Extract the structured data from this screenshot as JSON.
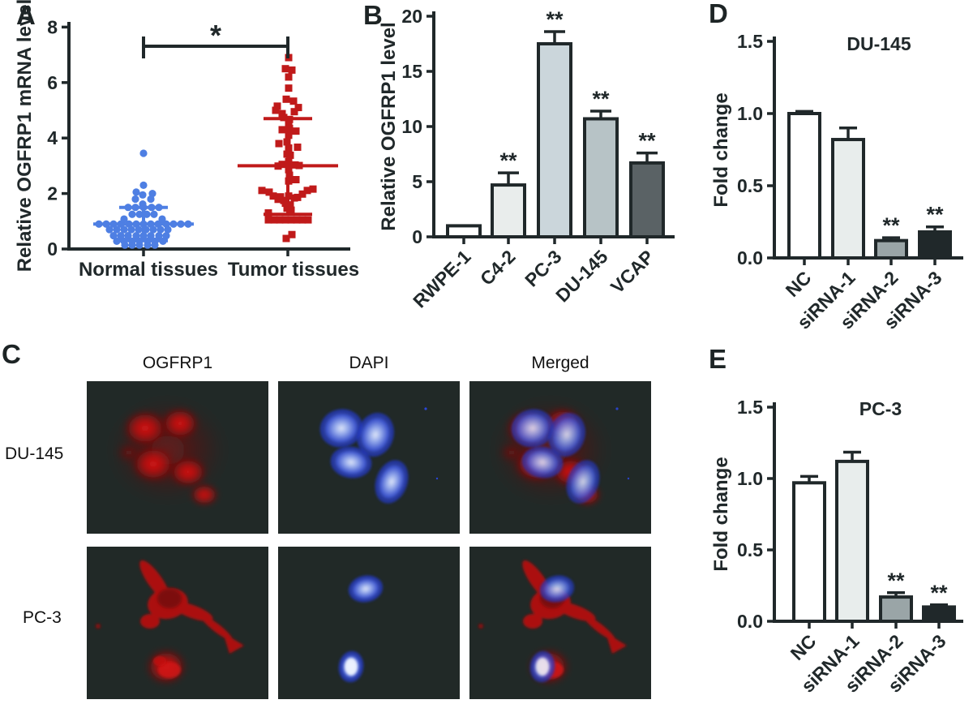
{
  "panels": {
    "A": {
      "label": "A"
    },
    "B": {
      "label": "B"
    },
    "C": {
      "label": "C",
      "column_headers": [
        "OGFRP1",
        "DAPI",
        "Merged"
      ],
      "row_labels": [
        "DU-145",
        "PC-3"
      ],
      "stains": {
        "OGFRP1": "red fluorescence",
        "DAPI": "blue nuclear stain",
        "Merged": "overlay"
      },
      "stain_colors": {
        "OGFRP1": "#c01414",
        "DAPI": "#3b55dd"
      }
    },
    "D": {
      "label": "D"
    },
    "E": {
      "label": "E"
    }
  },
  "colors": {
    "ink": "#20282A",
    "normal_points": "#4E7FE3",
    "tumor_points": "#C01A1A",
    "micrograph_bg": "#212927"
  },
  "chart_data": [
    {
      "panel": "A",
      "type": "scatter",
      "title": "",
      "xlabel": "",
      "ylabel": "Relative OGFRP1 mRNA level",
      "ylim": [
        0,
        8
      ],
      "yticks": [
        0,
        2,
        4,
        6,
        8
      ],
      "categories": [
        "Normal tissues",
        "Tumor tissues"
      ],
      "significance": {
        "label": "*",
        "from": "Normal tissues",
        "to": "Tumor tissues"
      },
      "series": [
        {
          "name": "Normal tissues",
          "marker": "circle",
          "color": "#4E7FE3",
          "mean": 0.9,
          "error_low": 0.3,
          "error_high": 1.5,
          "points": [
            [
              3.45,
              0
            ],
            [
              2.3,
              0
            ],
            [
              2.05,
              -9
            ],
            [
              2.0,
              11
            ],
            [
              1.95,
              -1
            ],
            [
              1.8,
              -10
            ],
            [
              1.8,
              9
            ],
            [
              1.62,
              -1
            ],
            [
              1.5,
              -19
            ],
            [
              1.5,
              -10
            ],
            [
              1.5,
              0
            ],
            [
              1.5,
              10
            ],
            [
              1.5,
              19
            ],
            [
              1.25,
              -14
            ],
            [
              1.25,
              -5
            ],
            [
              1.25,
              4
            ],
            [
              1.25,
              13
            ],
            [
              1.08,
              -24
            ],
            [
              1.08,
              23
            ],
            [
              0.9,
              -55
            ],
            [
              0.9,
              -46
            ],
            [
              0.9,
              -37
            ],
            [
              0.9,
              -28
            ],
            [
              0.9,
              -18
            ],
            [
              0.9,
              -9
            ],
            [
              0.9,
              0
            ],
            [
              0.9,
              9
            ],
            [
              0.9,
              18
            ],
            [
              0.9,
              28
            ],
            [
              0.9,
              37
            ],
            [
              0.9,
              46
            ],
            [
              0.9,
              55
            ],
            [
              0.7,
              -42
            ],
            [
              0.7,
              -33
            ],
            [
              0.7,
              -24
            ],
            [
              0.7,
              -15
            ],
            [
              0.7,
              -6
            ],
            [
              0.7,
              3
            ],
            [
              0.7,
              12
            ],
            [
              0.7,
              21
            ],
            [
              0.7,
              30
            ],
            [
              0.48,
              -37
            ],
            [
              0.48,
              -28
            ],
            [
              0.48,
              -19
            ],
            [
              0.48,
              -9
            ],
            [
              0.48,
              0
            ],
            [
              0.48,
              9
            ],
            [
              0.48,
              19
            ],
            [
              0.48,
              28
            ],
            [
              0.28,
              -33
            ],
            [
              0.28,
              -24
            ],
            [
              0.28,
              -14
            ],
            [
              0.28,
              -5
            ],
            [
              0.28,
              5
            ],
            [
              0.28,
              14
            ],
            [
              0.28,
              24
            ],
            [
              0.14,
              -23
            ],
            [
              0.14,
              -14
            ],
            [
              0.14,
              -5
            ],
            [
              0.14,
              5
            ],
            [
              0.14,
              14
            ]
          ]
        },
        {
          "name": "Tumor tissues",
          "marker": "square",
          "color": "#C01A1A",
          "mean": 3.0,
          "error_low": 1.25,
          "error_high": 4.7,
          "points": [
            [
              6.9,
              1
            ],
            [
              6.5,
              -3
            ],
            [
              6.45,
              5
            ],
            [
              6.2,
              1
            ],
            [
              5.8,
              1
            ],
            [
              5.4,
              -2
            ],
            [
              5.33,
              7
            ],
            [
              5.15,
              -13
            ],
            [
              5.1,
              13
            ],
            [
              5.0,
              -15
            ],
            [
              4.95,
              8
            ],
            [
              4.88,
              -7
            ],
            [
              4.74,
              -5
            ],
            [
              4.67,
              2
            ],
            [
              4.55,
              1
            ],
            [
              4.35,
              2
            ],
            [
              4.3,
              -7
            ],
            [
              4.25,
              10
            ],
            [
              4.1,
              1
            ],
            [
              3.86,
              -1
            ],
            [
              3.8,
              -11
            ],
            [
              3.67,
              12
            ],
            [
              3.64,
              1
            ],
            [
              3.42,
              -1
            ],
            [
              3.38,
              3
            ],
            [
              3.15,
              1
            ],
            [
              3.05,
              -7
            ],
            [
              3.03,
              9
            ],
            [
              3.01,
              14
            ],
            [
              2.99,
              -12
            ],
            [
              2.86,
              1
            ],
            [
              2.66,
              2
            ],
            [
              2.5,
              10
            ],
            [
              2.45,
              1
            ],
            [
              2.11,
              -32
            ],
            [
              2.05,
              -23
            ],
            [
              1.98,
              18
            ],
            [
              1.91,
              -18
            ],
            [
              1.88,
              -9
            ],
            [
              1.86,
              12
            ],
            [
              1.84,
              8
            ],
            [
              1.79,
              -12
            ],
            [
              1.75,
              -5
            ],
            [
              1.91,
              1
            ],
            [
              2.11,
              24
            ],
            [
              2.16,
              31
            ],
            [
              1.65,
              -3
            ],
            [
              1.59,
              3
            ],
            [
              1.47,
              -1
            ],
            [
              1.4,
              4
            ],
            [
              1.3,
              -24
            ],
            [
              1.05,
              -24
            ],
            [
              1.05,
              -17
            ],
            [
              1.05,
              -10
            ],
            [
              1.05,
              -3
            ],
            [
              1.05,
              4
            ],
            [
              1.05,
              11
            ],
            [
              1.05,
              18
            ],
            [
              1.05,
              25
            ],
            [
              0.52,
              5
            ],
            [
              0.38,
              -2
            ]
          ]
        }
      ]
    },
    {
      "panel": "B",
      "type": "bar",
      "title": "",
      "xlabel": "",
      "ylabel": "Relative OGFRP1 level",
      "ylim": [
        0,
        20
      ],
      "yticks": [
        0,
        5,
        10,
        15,
        20
      ],
      "categories": [
        "RWPE-1",
        "C4-2",
        "PC-3",
        "DU-145",
        "VCAP"
      ],
      "values": [
        1.0,
        4.7,
        17.5,
        10.7,
        6.7
      ],
      "errors": [
        0,
        1.1,
        1.1,
        0.7,
        0.9
      ],
      "significance": [
        "",
        "**",
        "**",
        "**",
        "**"
      ],
      "bar_colors": [
        "#FFFFFF",
        "#E9EDEC",
        "#CBD6DB",
        "#B7C3C6",
        "#5A6265"
      ]
    },
    {
      "panel": "D",
      "type": "bar",
      "title": "DU-145",
      "xlabel": "",
      "ylabel": "Fold change",
      "ylim": [
        0,
        1.5
      ],
      "yticks": [
        "0.0",
        "0.5",
        "1.0",
        "1.5"
      ],
      "categories": [
        "NC",
        "siRNA-1",
        "siRNA-2",
        "siRNA-3"
      ],
      "values": [
        1.0,
        0.82,
        0.12,
        0.18
      ],
      "errors": [
        0.015,
        0.08,
        0.02,
        0.035
      ],
      "significance": [
        "",
        "",
        "**",
        "**"
      ],
      "bar_colors": [
        "#FFFFFF",
        "#E8EDEC",
        "#9AA5A7",
        "#20282A"
      ]
    },
    {
      "panel": "E",
      "type": "bar",
      "title": "PC-3",
      "xlabel": "",
      "ylabel": "Fold change",
      "ylim": [
        0,
        1.5
      ],
      "yticks": [
        "0.0",
        "0.5",
        "1.0",
        "1.5"
      ],
      "categories": [
        "NC",
        "siRNA-1",
        "siRNA-2",
        "siRNA-3"
      ],
      "values": [
        0.97,
        1.12,
        0.17,
        0.1
      ],
      "errors": [
        0.045,
        0.065,
        0.03,
        0.015
      ],
      "significance": [
        "",
        "",
        "**",
        "**"
      ],
      "bar_colors": [
        "#FFFFFF",
        "#E8EDEC",
        "#9AA5A7",
        "#20282A"
      ]
    }
  ]
}
